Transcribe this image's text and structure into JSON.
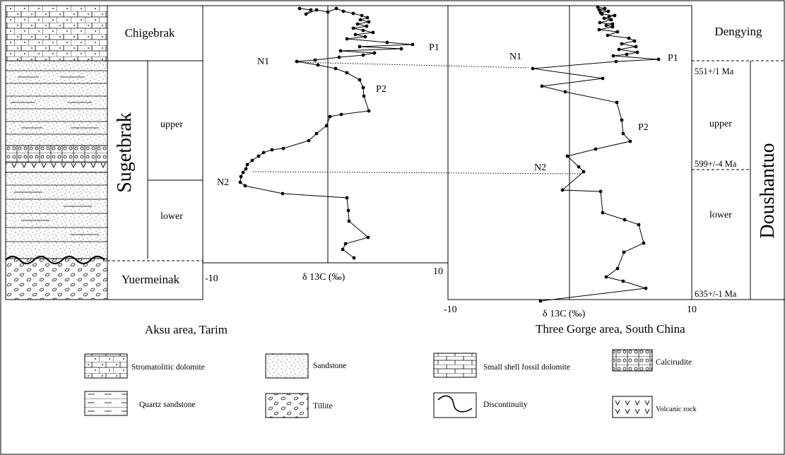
{
  "aksu": {
    "units": {
      "chigebrak": "Chigebrak",
      "sugetbrak": "Sugetbrak",
      "upper": "upper",
      "lower": "lower",
      "yuermeinak": "Yuermeinak"
    },
    "axis": {
      "min": "-10",
      "max": "10",
      "label": "δ 13C (‰)"
    },
    "points": {
      "p1": "P1",
      "n1": "N1",
      "p2": "P2",
      "n2": "N2"
    },
    "caption": "Aksu area, Tarim"
  },
  "gorge": {
    "units": {
      "dengying": "Dengying",
      "upper": "upper",
      "lower": "lower",
      "doushantuo": "Doushantuo"
    },
    "ages": {
      "a551": "551+/1 Ma",
      "a599": "599+/-4 Ma",
      "a635": "635+/-1 Ma"
    },
    "axis": {
      "min": "-10",
      "max": "10",
      "label": "δ 13C (‰)"
    },
    "points": {
      "p1": "P1",
      "n1": "N1",
      "p2": "P2",
      "n2": "N2"
    },
    "caption": "Three Gorge area, South China"
  },
  "legend": {
    "stromatolitic": "Stromatolitic dolomite",
    "sandstone": "Sandstone",
    "smallshell": "Small shell fossil dolomite",
    "calcirudite": "Calcirudite",
    "quartz": "Quartz sandstone",
    "tillite": "Tillite",
    "discontinuity": "Discontinuity",
    "volcanic": "Volcanic rock"
  }
}
